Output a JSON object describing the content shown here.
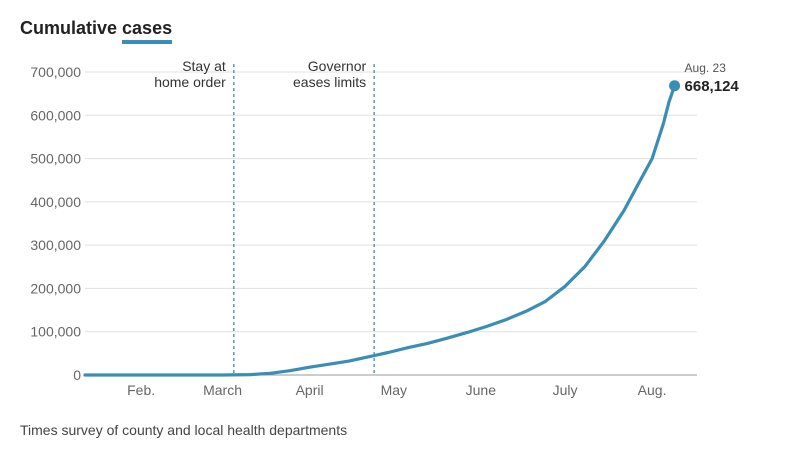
{
  "title": {
    "prefix": "Cumulative ",
    "emphasis": "cases"
  },
  "source": "Times survey of county and local health departments",
  "colors": {
    "line": "#3a8db4",
    "grid": "#e0e0e0",
    "marker_line": "#3a8db4"
  },
  "chart_data": {
    "type": "line",
    "title": "Cumulative cases",
    "xlabel": "",
    "ylabel": "",
    "x_range": [
      "2020-01-26",
      "2020-08-31"
    ],
    "ylim": [
      0,
      700000
    ],
    "y_ticks": [
      0,
      100000,
      200000,
      300000,
      400000,
      500000,
      600000,
      700000
    ],
    "y_tick_labels": [
      "0",
      "100,000",
      "200,000",
      "300,000",
      "400,000",
      "500,000",
      "600,000",
      "700,000"
    ],
    "x_ticks": [
      {
        "date": "2020-02-15",
        "label": "Feb."
      },
      {
        "date": "2020-03-15",
        "label": "March"
      },
      {
        "date": "2020-04-15",
        "label": "April"
      },
      {
        "date": "2020-05-15",
        "label": "May"
      },
      {
        "date": "2020-06-15",
        "label": "June"
      },
      {
        "date": "2020-07-15",
        "label": "July"
      },
      {
        "date": "2020-08-15",
        "label": "Aug."
      }
    ],
    "grid": true,
    "series": [
      {
        "values": [
          {
            "x": "2020-01-26",
            "y": 0
          },
          {
            "x": "2020-02-15",
            "y": 0
          },
          {
            "x": "2020-03-01",
            "y": 0
          },
          {
            "x": "2020-03-15",
            "y": 0
          },
          {
            "x": "2020-03-25",
            "y": 1000
          },
          {
            "x": "2020-04-01",
            "y": 4000
          },
          {
            "x": "2020-04-08",
            "y": 10000
          },
          {
            "x": "2020-04-15",
            "y": 18000
          },
          {
            "x": "2020-04-22",
            "y": 25000
          },
          {
            "x": "2020-04-29",
            "y": 32000
          },
          {
            "x": "2020-05-06",
            "y": 42000
          },
          {
            "x": "2020-05-13",
            "y": 52000
          },
          {
            "x": "2020-05-20",
            "y": 63000
          },
          {
            "x": "2020-05-27",
            "y": 73000
          },
          {
            "x": "2020-06-03",
            "y": 85000
          },
          {
            "x": "2020-06-10",
            "y": 98000
          },
          {
            "x": "2020-06-17",
            "y": 112000
          },
          {
            "x": "2020-06-24",
            "y": 128000
          },
          {
            "x": "2020-07-01",
            "y": 147000
          },
          {
            "x": "2020-07-08",
            "y": 170000
          },
          {
            "x": "2020-07-15",
            "y": 205000
          },
          {
            "x": "2020-07-22",
            "y": 250000
          },
          {
            "x": "2020-07-29",
            "y": 310000
          },
          {
            "x": "2020-08-05",
            "y": 380000
          },
          {
            "x": "2020-08-10",
            "y": 440000
          },
          {
            "x": "2020-08-15",
            "y": 500000
          },
          {
            "x": "2020-08-19",
            "y": 580000
          },
          {
            "x": "2020-08-21",
            "y": 630000
          },
          {
            "x": "2020-08-23",
            "y": 668124
          }
        ]
      }
    ],
    "annotations": [
      {
        "date": "2020-03-19",
        "lines": [
          "Stay at",
          "home order"
        ]
      },
      {
        "date": "2020-05-08",
        "lines": [
          "Governor",
          "eases limits"
        ]
      }
    ],
    "end_label": {
      "date": "2020-08-23",
      "date_label": "Aug. 23",
      "value": 668124,
      "value_label": "668,124"
    }
  }
}
